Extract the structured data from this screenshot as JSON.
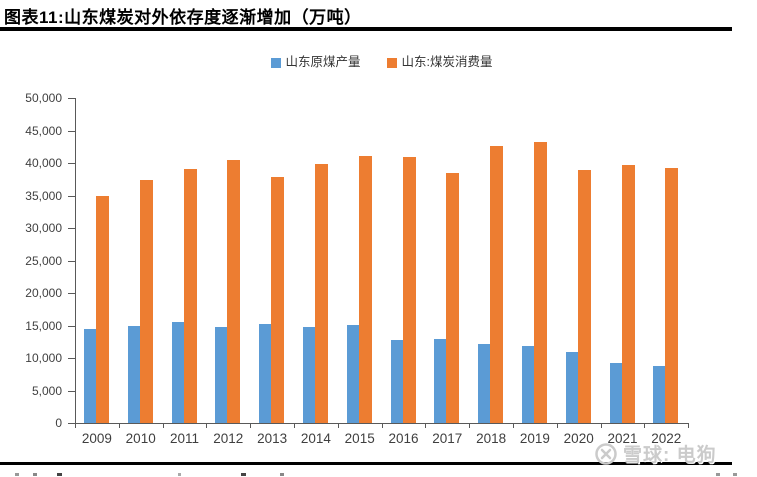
{
  "figure": {
    "title": "图表11:山东煤炭对外依存度逐渐增加（万吨）"
  },
  "watermark": {
    "logo": "xueqiu-snowball-logo",
    "text": "雪球: 电狗"
  },
  "chart_data": {
    "type": "bar",
    "title": "图表11:山东煤炭对外依存度逐渐增加（万吨）",
    "unit": "万吨",
    "categories": [
      "2009",
      "2010",
      "2011",
      "2012",
      "2013",
      "2014",
      "2015",
      "2016",
      "2017",
      "2018",
      "2019",
      "2020",
      "2021",
      "2022"
    ],
    "series": [
      {
        "name": "山东原煤产量",
        "color": "#5B9BD5",
        "values": [
          14400,
          15000,
          15500,
          14800,
          15300,
          14800,
          15100,
          12800,
          13000,
          12100,
          11800,
          11000,
          9200,
          8700
        ]
      },
      {
        "name": "山东:煤炭消费量",
        "color": "#ED7D31",
        "values": [
          34900,
          37400,
          39100,
          40400,
          37900,
          39900,
          41100,
          41000,
          38400,
          42600,
          43300,
          38900,
          39700,
          39200
        ]
      }
    ],
    "ylim": [
      0,
      50000
    ],
    "ytick_step": 5000,
    "ytick_labels": [
      "50,000",
      "45,000",
      "40,000",
      "35,000",
      "30,000",
      "25,000",
      "20,000",
      "15,000",
      "10,000",
      "5,000",
      "0"
    ],
    "grid": false,
    "legend_position": "top",
    "axis_color": "#595959",
    "label_color": "#404040"
  }
}
